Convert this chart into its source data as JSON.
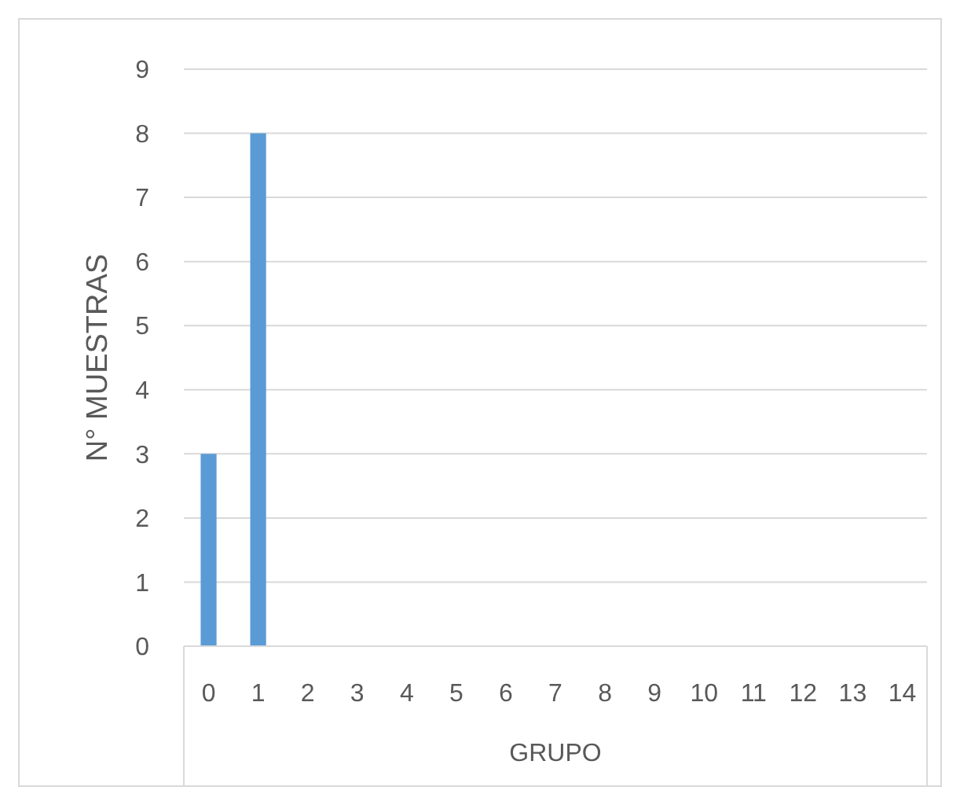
{
  "chart_data": {
    "type": "bar",
    "xlabel": "GRUPO",
    "ylabel": "N° MUESTRAS",
    "categories": [
      "0",
      "1",
      "2",
      "3",
      "4",
      "5",
      "6",
      "7",
      "8",
      "9",
      "10",
      "11",
      "12",
      "13",
      "14"
    ],
    "values": [
      3,
      8,
      0,
      0,
      0,
      0,
      0,
      0,
      0,
      0,
      0,
      0,
      0,
      0,
      0
    ],
    "color": "#5b9bd5",
    "ylim": [
      0,
      9
    ],
    "yticks": [
      0,
      1,
      2,
      3,
      4,
      5,
      6,
      7,
      8,
      9
    ],
    "grid": "y"
  }
}
